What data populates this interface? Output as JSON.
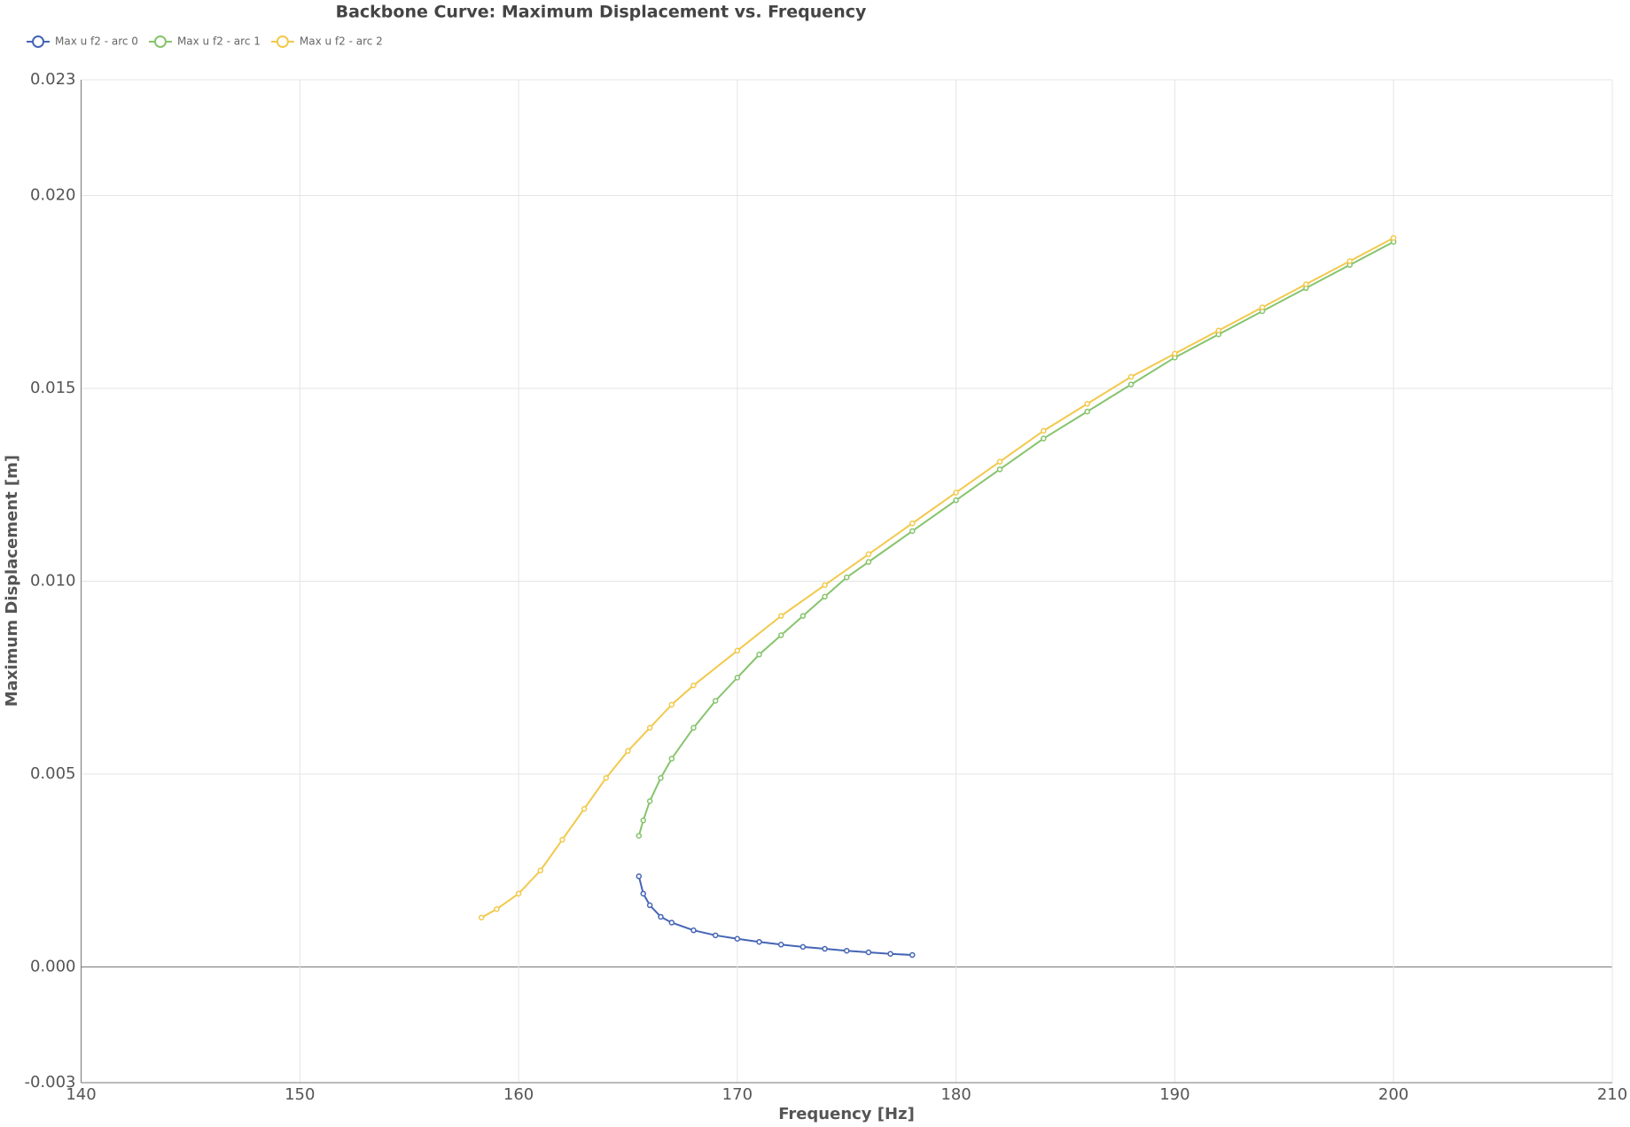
{
  "chart_data": {
    "type": "line",
    "title": "Backbone Curve: Maximum Displacement vs. Frequency",
    "x_label": "Frequency [Hz]",
    "y_label": "Maximum Displacement [m]",
    "xlim": [
      140,
      210
    ],
    "xticks": [
      140,
      150,
      160,
      170,
      180,
      190,
      200,
      210
    ],
    "ylim": [
      -0.003,
      0.023
    ],
    "yticks": [
      {
        "value": -0.003,
        "label": "-0.003"
      },
      {
        "value": 0,
        "label": "0.000"
      },
      {
        "value": 0.005,
        "label": "0.005"
      },
      {
        "value": 0.01,
        "label": "0.010"
      },
      {
        "value": 0.015,
        "label": "0.015"
      },
      {
        "value": 0.02,
        "label": "0.020"
      },
      {
        "value": 0.023,
        "label": "0.023"
      }
    ],
    "grid": true,
    "legend": "top-left",
    "series": [
      {
        "name": "Max u f2 - arc 0",
        "color": "#4565b5",
        "x": [
          165.5,
          165.7,
          166,
          166.5,
          167,
          168,
          169,
          170,
          171,
          172,
          173,
          174,
          175,
          176,
          177,
          178
        ],
        "values": [
          0.00235,
          0.0019,
          0.0016,
          0.0013,
          0.00115,
          0.00095,
          0.00082,
          0.00073,
          0.00065,
          0.00058,
          0.00052,
          0.00047,
          0.00042,
          0.00038,
          0.00034,
          0.00031
        ]
      },
      {
        "name": "Max u f2 - arc 1",
        "color": "#86c46c",
        "x": [
          165.5,
          165.7,
          166,
          166.5,
          167,
          168,
          169,
          170,
          171,
          172,
          173,
          174,
          175,
          176,
          178,
          180,
          182,
          184,
          186,
          188,
          190,
          192,
          194,
          196,
          198,
          200
        ],
        "values": [
          0.0034,
          0.0038,
          0.0043,
          0.0049,
          0.0054,
          0.0062,
          0.0069,
          0.0075,
          0.0081,
          0.0086,
          0.0091,
          0.0096,
          0.0101,
          0.0105,
          0.0113,
          0.0121,
          0.0129,
          0.0137,
          0.0144,
          0.0151,
          0.0158,
          0.0164,
          0.017,
          0.0176,
          0.0182,
          0.0188
        ]
      },
      {
        "name": "Max u f2 - arc 2",
        "color": "#f2c94c",
        "x": [
          158.3,
          159,
          160,
          161,
          162,
          163,
          164,
          165,
          166,
          167,
          168,
          170,
          172,
          174,
          176,
          178,
          180,
          182,
          184,
          186,
          188,
          190,
          192,
          194,
          196,
          198,
          200
        ],
        "values": [
          0.00128,
          0.0015,
          0.0019,
          0.0025,
          0.0033,
          0.0041,
          0.0049,
          0.0056,
          0.0062,
          0.0068,
          0.0073,
          0.0082,
          0.0091,
          0.0099,
          0.0107,
          0.0115,
          0.0123,
          0.0131,
          0.0139,
          0.0146,
          0.0153,
          0.0159,
          0.0165,
          0.0171,
          0.0177,
          0.0183,
          0.0189
        ]
      }
    ]
  }
}
